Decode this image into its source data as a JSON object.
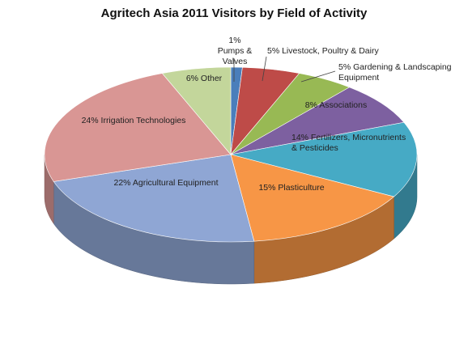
{
  "chart_data": {
    "type": "pie3d",
    "title": "Agritech Asia 2011 Visitors by Field of Activity",
    "categories": [
      "1% Pumps & Valves",
      "5% Livestock, Poultry & Dairy",
      "5% Gardening & Landscaping Equipment",
      "8% Associations",
      "14% Fertilizers, Micronutrients & Pesticides",
      "15% Plasticulture",
      "22% Agricultural Equipment",
      "24% Irrigation Technologies",
      "6% Other"
    ],
    "values": [
      1,
      5,
      5,
      8,
      14,
      15,
      22,
      24,
      6
    ],
    "colors": [
      "#4a7ebb",
      "#be4b48",
      "#98b954",
      "#7d60a0",
      "#46aac5",
      "#f79646",
      "#8fa6d4",
      "#d99694",
      "#c3d69b"
    ]
  }
}
